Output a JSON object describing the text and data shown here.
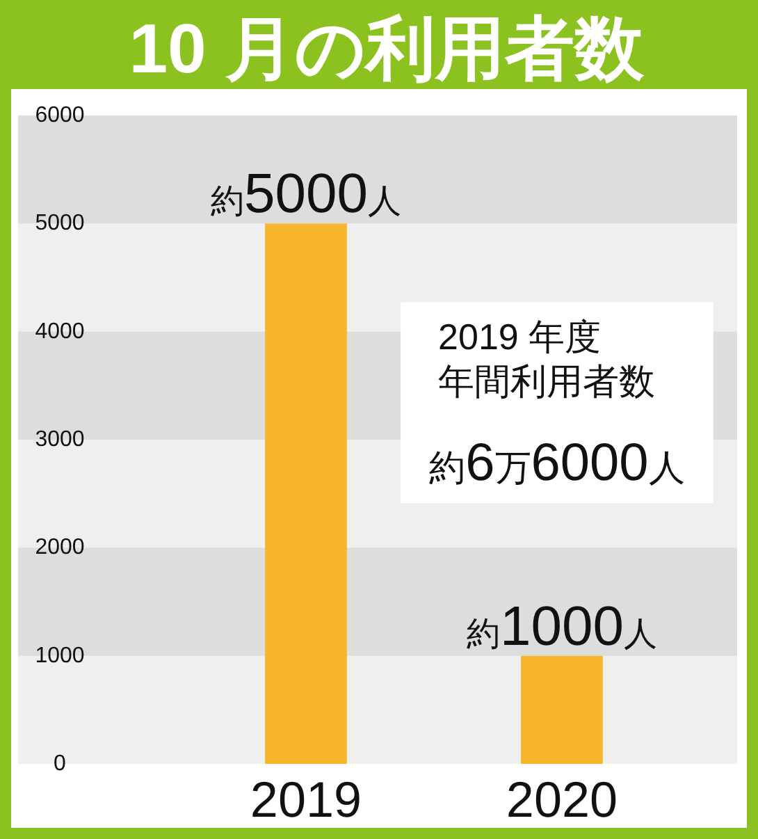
{
  "chart_data": {
    "type": "bar",
    "title": "10 月の利用者数",
    "categories": [
      "2019",
      "2020"
    ],
    "values": [
      5000,
      1000
    ],
    "color": "#f7b52c",
    "value_labels": [
      "約5000人",
      "約1000人"
    ],
    "ylim": [
      0,
      6000
    ],
    "yticks": [
      0,
      1000,
      2000,
      3000,
      4000,
      5000,
      6000
    ],
    "bands": [
      {
        "axis": "y",
        "from": 5000,
        "to": 6000,
        "color": "#dcdddd"
      },
      {
        "axis": "y",
        "from": 3000,
        "to": 4000,
        "color": "#dcdddd"
      },
      {
        "axis": "y",
        "from": 1000,
        "to": 2000,
        "color": "#dcdddd"
      }
    ],
    "annotations": [
      "2019 年度",
      "年間利用者数",
      "約6万6000人"
    ]
  }
}
